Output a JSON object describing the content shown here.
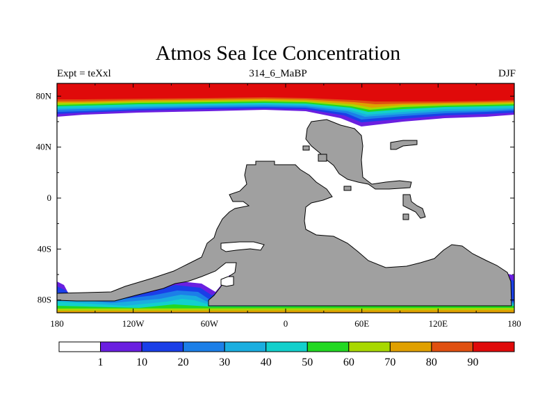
{
  "title": "Atmos Sea Ice Concentration",
  "subtitle": {
    "left": "Expt = teXxl",
    "center": "314_6_MaBP",
    "right": "DJF"
  },
  "axes": {
    "x_ticks": [
      {
        "lon": -180,
        "label": "180"
      },
      {
        "lon": -120,
        "label": "120W"
      },
      {
        "lon": -60,
        "label": "60W"
      },
      {
        "lon": 0,
        "label": "0"
      },
      {
        "lon": 60,
        "label": "60E"
      },
      {
        "lon": 120,
        "label": "120E"
      },
      {
        "lon": 180,
        "label": "180"
      }
    ],
    "y_ticks": [
      {
        "lat": 80,
        "label": "80N"
      },
      {
        "lat": 40,
        "label": "40N"
      },
      {
        "lat": 0,
        "label": "0"
      },
      {
        "lat": -40,
        "label": "40S"
      },
      {
        "lat": -80,
        "label": "80S"
      }
    ],
    "lon_range": [
      -180,
      180
    ],
    "lat_range": [
      -90,
      90
    ]
  },
  "colorbar": {
    "colors": [
      "#ffffff",
      "#6a1fe0",
      "#1a3fe8",
      "#1c7fe8",
      "#1aaee0",
      "#12d0cc",
      "#22d822",
      "#a8d800",
      "#e0a000",
      "#e05010",
      "#e00a0a"
    ],
    "labels": [
      "1",
      "10",
      "20",
      "30",
      "40",
      "50",
      "60",
      "70",
      "80",
      "90"
    ]
  },
  "map": {
    "ocean_color": "#ffffff",
    "land_color": "#a0a0a0"
  }
}
